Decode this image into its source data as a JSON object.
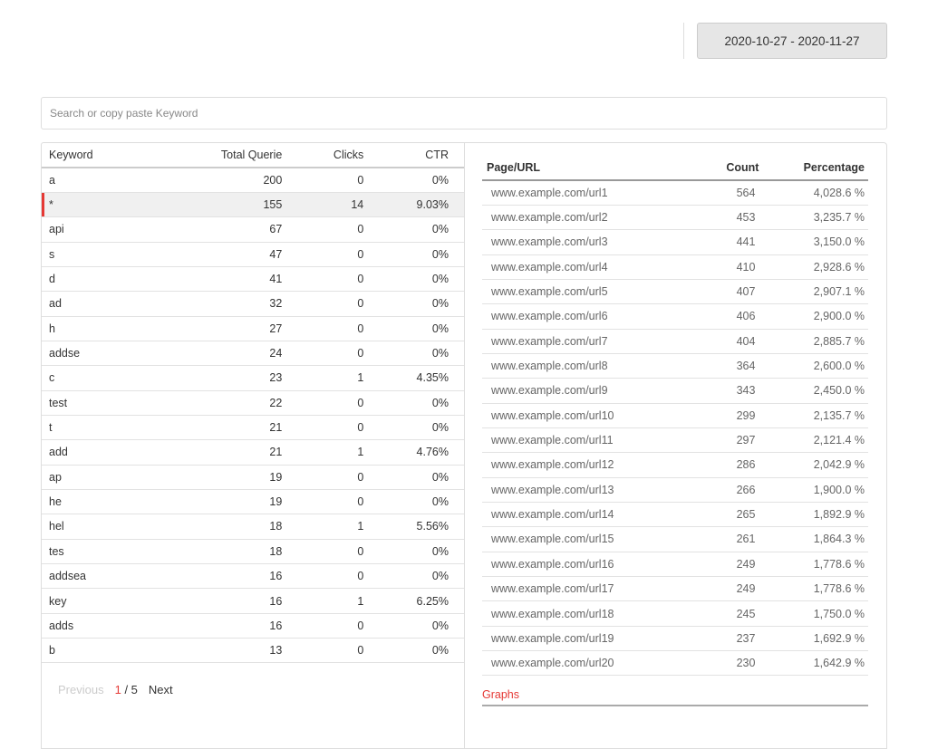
{
  "date_range": "2020-10-27 - 2020-11-27",
  "search": {
    "placeholder": "Search or copy paste Keyword",
    "value": ""
  },
  "keywords": {
    "headers": [
      "Keyword",
      "Total Querie",
      "Clicks",
      "CTR"
    ],
    "rows": [
      [
        "a",
        "200",
        "0",
        "0%"
      ],
      [
        "*",
        "155",
        "14",
        "9.03%"
      ],
      [
        "api",
        "67",
        "0",
        "0%"
      ],
      [
        "s",
        "47",
        "0",
        "0%"
      ],
      [
        "d",
        "41",
        "0",
        "0%"
      ],
      [
        "ad",
        "32",
        "0",
        "0%"
      ],
      [
        "h",
        "27",
        "0",
        "0%"
      ],
      [
        "addse",
        "24",
        "0",
        "0%"
      ],
      [
        "c",
        "23",
        "1",
        "4.35%"
      ],
      [
        "test",
        "22",
        "0",
        "0%"
      ],
      [
        "t",
        "21",
        "0",
        "0%"
      ],
      [
        "add",
        "21",
        "1",
        "4.76%"
      ],
      [
        "ap",
        "19",
        "0",
        "0%"
      ],
      [
        "he",
        "19",
        "0",
        "0%"
      ],
      [
        "hel",
        "18",
        "1",
        "5.56%"
      ],
      [
        "tes",
        "18",
        "0",
        "0%"
      ],
      [
        "addsea",
        "16",
        "0",
        "0%"
      ],
      [
        "key",
        "16",
        "1",
        "6.25%"
      ],
      [
        "adds",
        "16",
        "0",
        "0%"
      ],
      [
        "b",
        "13",
        "0",
        "0%"
      ]
    ],
    "selected_index": 1,
    "pager": {
      "previous": "Previous",
      "current": "1",
      "total": "/ 5",
      "next": "Next"
    }
  },
  "urls": {
    "headers": [
      "Page/URL",
      "Count",
      "Percentage"
    ],
    "rows": [
      [
        "www.example.com/url1",
        "564",
        "4,028.6 %"
      ],
      [
        "www.example.com/url2",
        "453",
        "3,235.7 %"
      ],
      [
        "www.example.com/url3",
        "441",
        "3,150.0 %"
      ],
      [
        "www.example.com/url4",
        "410",
        "2,928.6 %"
      ],
      [
        "www.example.com/url5",
        "407",
        "2,907.1 %"
      ],
      [
        "www.example.com/url6",
        "406",
        "2,900.0 %"
      ],
      [
        "www.example.com/url7",
        "404",
        "2,885.7 %"
      ],
      [
        "www.example.com/url8",
        "364",
        "2,600.0 %"
      ],
      [
        "www.example.com/url9",
        "343",
        "2,450.0 %"
      ],
      [
        "www.example.com/url10",
        "299",
        "2,135.7 %"
      ],
      [
        "www.example.com/url11",
        "297",
        "2,121.4 %"
      ],
      [
        "www.example.com/url12",
        "286",
        "2,042.9 %"
      ],
      [
        "www.example.com/url13",
        "266",
        "1,900.0 %"
      ],
      [
        "www.example.com/url14",
        "265",
        "1,892.9 %"
      ],
      [
        "www.example.com/url15",
        "261",
        "1,864.3 %"
      ],
      [
        "www.example.com/url16",
        "249",
        "1,778.6 %"
      ],
      [
        "www.example.com/url17",
        "249",
        "1,778.6 %"
      ],
      [
        "www.example.com/url18",
        "245",
        "1,750.0 %"
      ],
      [
        "www.example.com/url19",
        "237",
        "1,692.9 %"
      ],
      [
        "www.example.com/url20",
        "230",
        "1,642.9 %"
      ]
    ]
  },
  "graphs_label": "Graphs",
  "accent": "#e53935"
}
